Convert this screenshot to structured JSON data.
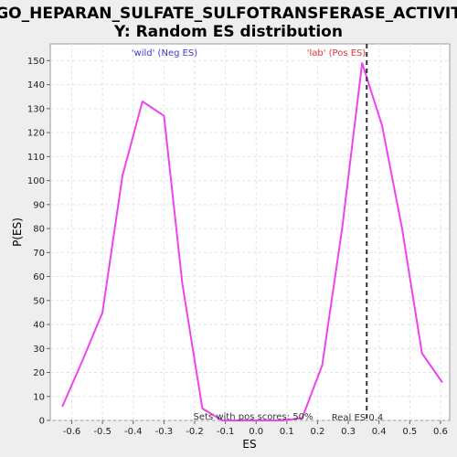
{
  "chart_data": {
    "type": "line",
    "title_line1": "GO_HEPARAN_SULFATE_SULFOTRANSFERASE_ACTIVIT",
    "title_line2": "Y: Random ES distribution",
    "xlabel": "ES",
    "ylabel": "P(ES)",
    "xlim": [
      -0.67,
      0.63
    ],
    "ylim": [
      0,
      157
    ],
    "x_ticks": [
      -0.6,
      -0.5,
      -0.4,
      -0.3,
      -0.2,
      -0.1,
      0.0,
      0.1,
      0.2,
      0.3,
      0.4,
      0.5,
      0.6
    ],
    "x_tick_labels": [
      "-0.6",
      "-0.5",
      "-0.4",
      "-0.3",
      "-0.2",
      "-0.1",
      "0.0",
      "0.1",
      "0.2",
      "0.3",
      "0.4",
      "0.5",
      "0.6"
    ],
    "y_ticks": [
      0,
      10,
      20,
      30,
      40,
      50,
      60,
      70,
      80,
      90,
      100,
      110,
      120,
      130,
      140,
      150
    ],
    "y_tick_labels": [
      "0",
      "10",
      "20",
      "30",
      "40",
      "50",
      "60",
      "70",
      "80",
      "90",
      "100",
      "110",
      "120",
      "130",
      "140",
      "150"
    ],
    "grid": true,
    "series": [
      {
        "color": "#ee44ee",
        "x": [
          -0.63,
          -0.565,
          -0.5,
          -0.435,
          -0.37,
          -0.3,
          -0.24,
          -0.175,
          -0.11,
          -0.045,
          0.02,
          0.085,
          0.15,
          0.215,
          0.28,
          0.345,
          0.41,
          0.475,
          0.54,
          0.605
        ],
        "y": [
          6,
          25,
          45,
          102,
          133,
          127,
          57,
          5,
          0,
          0,
          0,
          0,
          1,
          23,
          80,
          149,
          123,
          80,
          28,
          16
        ]
      }
    ],
    "real_es": 0.36,
    "real_es_color": "#333333",
    "annotations": {
      "neg_label": "'wild' (Neg ES)",
      "neg_color": "#3b3bcf",
      "pos_label": "'lab' (Pos ES)",
      "pos_color": "#dd3333",
      "sets_text": "Sets with pos scores: 50%",
      "real_es_text": "Real ES 0.4"
    }
  }
}
